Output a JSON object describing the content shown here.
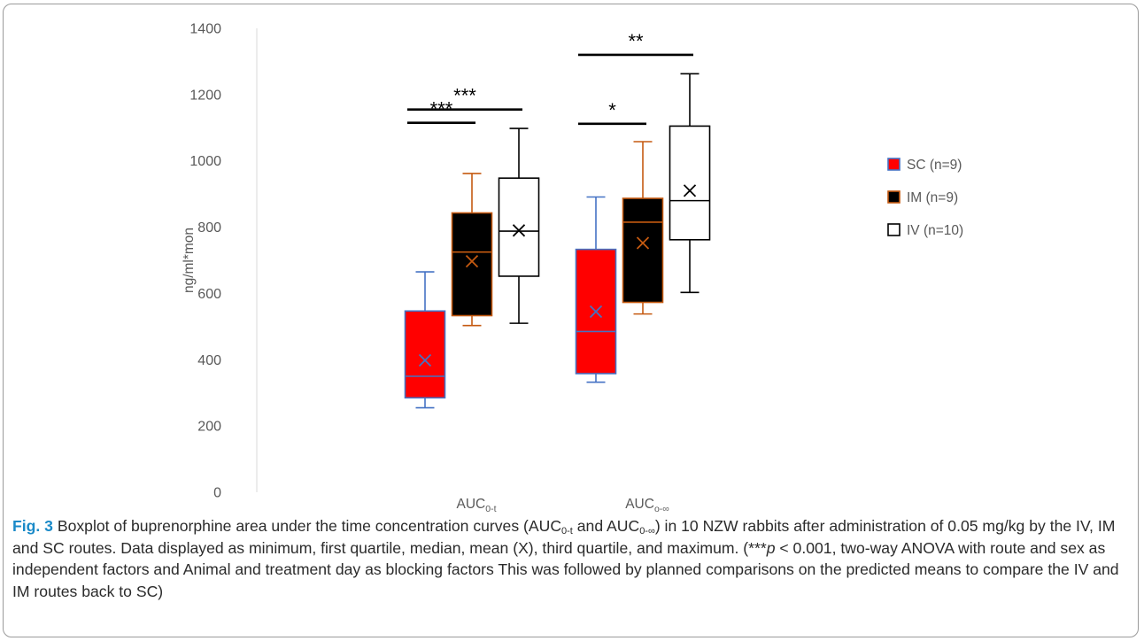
{
  "chart_data": {
    "type": "box",
    "ylabel": "ng/ml*mon",
    "ylim": [
      0,
      1400
    ],
    "yticks": [
      0,
      200,
      400,
      600,
      800,
      1000,
      1200,
      1400
    ],
    "grid": false,
    "legend_position": "right",
    "groups": [
      {
        "label_main": "AUC",
        "label_sub": "0-t",
        "boxes": [
          {
            "series": "SC (n=9)",
            "min": 255,
            "q1": 285,
            "median": 350,
            "mean": 398,
            "q3": 547,
            "max": 665
          },
          {
            "series": "IM (n=9)",
            "min": 503,
            "q1": 533,
            "median": 725,
            "mean": 697,
            "q3": 843,
            "max": 962
          },
          {
            "series": "IV (n=10)",
            "min": 510,
            "q1": 652,
            "median": 788,
            "mean": 790,
            "q3": 948,
            "max": 1098
          }
        ],
        "brackets": [
          {
            "from": 0,
            "to": 1,
            "y": 1115,
            "label": "***"
          },
          {
            "from": 0,
            "to": 2,
            "y": 1155,
            "label": "***"
          }
        ]
      },
      {
        "label_main": "AUC",
        "label_sub": "o-∞",
        "boxes": [
          {
            "series": "SC (n=9)",
            "min": 332,
            "q1": 358,
            "median": 485,
            "mean": 545,
            "q3": 733,
            "max": 891
          },
          {
            "series": "IM (n=9)",
            "min": 538,
            "q1": 573,
            "median": 815,
            "mean": 752,
            "q3": 887,
            "max": 1058
          },
          {
            "series": "IV (n=10)",
            "min": 603,
            "q1": 762,
            "median": 880,
            "mean": 910,
            "q3": 1105,
            "max": 1263
          }
        ],
        "brackets": [
          {
            "from": 0,
            "to": 1,
            "y": 1112,
            "label": "*"
          },
          {
            "from": 0,
            "to": 2,
            "y": 1320,
            "label": "**"
          }
        ]
      }
    ],
    "series": [
      {
        "name": "SC (n=9)",
        "fill": "#ff0000",
        "edge": "#4472c4"
      },
      {
        "name": "IM (n=9)",
        "fill": "#000000",
        "edge": "#c55a11"
      },
      {
        "name": "IV (n=10)",
        "fill": "#ffffff",
        "edge": "#000000"
      }
    ]
  },
  "caption": {
    "fig_label": "Fig. 3",
    "text1": " Boxplot of buprenorphine area under the time concentration curves (AUC",
    "sub1": "0-t",
    "text2": " and AUC",
    "sub2": "0-∞",
    "text3": ") in 10 NZW rabbits after administration of 0.05 mg/kg by the IV, IM and SC routes. Data displayed as minimum, first quartile, median, mean (X), third quartile, and maximum. (***",
    "pval": "p",
    "text4": " < 0.001, two-way ANOVA with route and sex as independent factors and Animal and treatment day as blocking factors This was followed by planned comparisons on the predicted means to compare the IV and IM routes back to SC)"
  }
}
